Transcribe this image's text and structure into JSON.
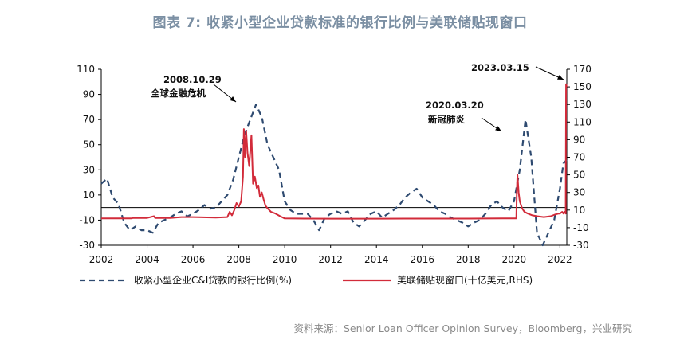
{
  "title": "图表 7:  收紧小型企业贷款标准的银行比例与美联储贴现窗口",
  "source": "资料来源：Senior Loan Officer Opinion Survey，Bloomberg，兴业研究",
  "colors": {
    "series1": "#2e4a70",
    "series2": "#d22b3a",
    "title": "#7b8fa3",
    "axis": "#000000"
  },
  "chart_data": {
    "type": "line",
    "title": "图表 7:  收紧小型企业贷款标准的银行比例与美联储贴现窗口",
    "x_ticks": [
      "2002",
      "2004",
      "2006",
      "2008",
      "2010",
      "2012",
      "2014",
      "2016",
      "2018",
      "2020",
      "2022"
    ],
    "xlim": [
      2002,
      2022.3
    ],
    "y_left": {
      "ylim": [
        -30,
        110
      ],
      "ticks": [
        -30,
        -10,
        10,
        30,
        50,
        70,
        90,
        110
      ]
    },
    "y_right": {
      "ylim": [
        -30,
        170
      ],
      "ticks": [
        -30,
        -10,
        10,
        30,
        50,
        70,
        90,
        110,
        130,
        150,
        170
      ]
    },
    "legend_position": "bottom",
    "series": [
      {
        "name": "收紧小型企业C&I贷款的银行比例(%)",
        "axis": "left",
        "style": "dashed",
        "color": "#2e4a70",
        "points": [
          [
            2002.0,
            19
          ],
          [
            2002.25,
            23
          ],
          [
            2002.5,
            8
          ],
          [
            2002.75,
            3
          ],
          [
            2003.0,
            -12
          ],
          [
            2003.25,
            -18
          ],
          [
            2003.5,
            -15
          ],
          [
            2003.75,
            -18
          ],
          [
            2004.0,
            -18
          ],
          [
            2004.25,
            -20
          ],
          [
            2004.5,
            -12
          ],
          [
            2004.75,
            -10
          ],
          [
            2005.0,
            -8
          ],
          [
            2005.25,
            -5
          ],
          [
            2005.5,
            -3
          ],
          [
            2005.75,
            -7
          ],
          [
            2006.0,
            -5
          ],
          [
            2006.25,
            -2
          ],
          [
            2006.5,
            2
          ],
          [
            2006.75,
            -1
          ],
          [
            2007.0,
            0
          ],
          [
            2007.25,
            5
          ],
          [
            2007.5,
            10
          ],
          [
            2007.75,
            22
          ],
          [
            2008.0,
            40
          ],
          [
            2008.25,
            58
          ],
          [
            2008.5,
            70
          ],
          [
            2008.75,
            82
          ],
          [
            2009.0,
            72
          ],
          [
            2009.25,
            50
          ],
          [
            2009.5,
            40
          ],
          [
            2009.75,
            30
          ],
          [
            2010.0,
            5
          ],
          [
            2010.25,
            -2
          ],
          [
            2010.5,
            -5
          ],
          [
            2010.75,
            -5
          ],
          [
            2011.0,
            -5
          ],
          [
            2011.25,
            -10
          ],
          [
            2011.5,
            -18
          ],
          [
            2011.75,
            -8
          ],
          [
            2012.0,
            -5
          ],
          [
            2012.25,
            -3
          ],
          [
            2012.5,
            -5
          ],
          [
            2012.75,
            -3
          ],
          [
            2013.0,
            -12
          ],
          [
            2013.25,
            -15
          ],
          [
            2013.5,
            -10
          ],
          [
            2013.75,
            -5
          ],
          [
            2014.0,
            -3
          ],
          [
            2014.25,
            -8
          ],
          [
            2014.5,
            -5
          ],
          [
            2014.75,
            -2
          ],
          [
            2015.0,
            2
          ],
          [
            2015.25,
            8
          ],
          [
            2015.5,
            12
          ],
          [
            2015.75,
            15
          ],
          [
            2016.0,
            8
          ],
          [
            2016.25,
            5
          ],
          [
            2016.5,
            2
          ],
          [
            2016.75,
            -3
          ],
          [
            2017.0,
            -5
          ],
          [
            2017.25,
            -8
          ],
          [
            2017.5,
            -10
          ],
          [
            2017.75,
            -12
          ],
          [
            2018.0,
            -15
          ],
          [
            2018.25,
            -12
          ],
          [
            2018.5,
            -10
          ],
          [
            2018.75,
            -5
          ],
          [
            2019.0,
            2
          ],
          [
            2019.25,
            5
          ],
          [
            2019.5,
            0
          ],
          [
            2019.75,
            -3
          ],
          [
            2020.0,
            5
          ],
          [
            2020.25,
            30
          ],
          [
            2020.5,
            70
          ],
          [
            2020.75,
            40
          ],
          [
            2021.0,
            -20
          ],
          [
            2021.25,
            -30
          ],
          [
            2021.5,
            -20
          ],
          [
            2021.75,
            -10
          ],
          [
            2022.0,
            15
          ],
          [
            2022.15,
            35
          ],
          [
            2022.3,
            38
          ]
        ]
      },
      {
        "name": "美联储贴现窗口(十亿美元,RHS)",
        "axis": "right",
        "style": "solid",
        "color": "#d22b3a",
        "points": [
          [
            2002.0,
            0.5
          ],
          [
            2003.0,
            0.5
          ],
          [
            2003.3,
            0.5
          ],
          [
            2003.4,
            1
          ],
          [
            2004.0,
            1
          ],
          [
            2004.3,
            3
          ],
          [
            2004.35,
            1
          ],
          [
            2005.0,
            1
          ],
          [
            2005.5,
            2
          ],
          [
            2006.0,
            2
          ],
          [
            2007.0,
            1.5
          ],
          [
            2007.5,
            2
          ],
          [
            2007.6,
            8
          ],
          [
            2007.7,
            4
          ],
          [
            2007.8,
            10
          ],
          [
            2007.9,
            18
          ],
          [
            2008.0,
            14
          ],
          [
            2008.1,
            20
          ],
          [
            2008.18,
            48
          ],
          [
            2008.22,
            102
          ],
          [
            2008.27,
            70
          ],
          [
            2008.32,
            100
          ],
          [
            2008.38,
            75
          ],
          [
            2008.45,
            60
          ],
          [
            2008.55,
            95
          ],
          [
            2008.62,
            40
          ],
          [
            2008.7,
            48
          ],
          [
            2008.78,
            35
          ],
          [
            2008.85,
            38
          ],
          [
            2008.92,
            25
          ],
          [
            2009.0,
            30
          ],
          [
            2009.08,
            22
          ],
          [
            2009.16,
            15
          ],
          [
            2009.25,
            12
          ],
          [
            2009.4,
            8
          ],
          [
            2009.6,
            6
          ],
          [
            2009.8,
            3
          ],
          [
            2010.0,
            0.5
          ],
          [
            2011.0,
            0.3
          ],
          [
            2012.0,
            0.2
          ],
          [
            2014.0,
            0.2
          ],
          [
            2016.0,
            0.3
          ],
          [
            2018.0,
            0.3
          ],
          [
            2019.5,
            0.5
          ],
          [
            2020.1,
            0.5
          ],
          [
            2020.12,
            30
          ],
          [
            2020.15,
            50
          ],
          [
            2020.2,
            30
          ],
          [
            2020.25,
            20
          ],
          [
            2020.35,
            12
          ],
          [
            2020.45,
            8
          ],
          [
            2020.6,
            6
          ],
          [
            2020.8,
            4
          ],
          [
            2021.0,
            3
          ],
          [
            2021.3,
            2
          ],
          [
            2021.6,
            3
          ],
          [
            2021.8,
            5
          ],
          [
            2021.95,
            6
          ],
          [
            2022.0,
            6
          ],
          [
            2022.1,
            8
          ],
          [
            2022.15,
            6
          ],
          [
            2022.2,
            8
          ],
          [
            2022.25,
            6
          ],
          [
            2022.27,
            153
          ],
          [
            2022.3,
            150
          ]
        ]
      }
    ],
    "annotations": [
      {
        "date": "2008.10.29",
        "label": "全球金融危机"
      },
      {
        "date": "2020.03.20",
        "label": "新冠肺炎"
      },
      {
        "date": "2023.03.15",
        "label": ""
      }
    ]
  }
}
